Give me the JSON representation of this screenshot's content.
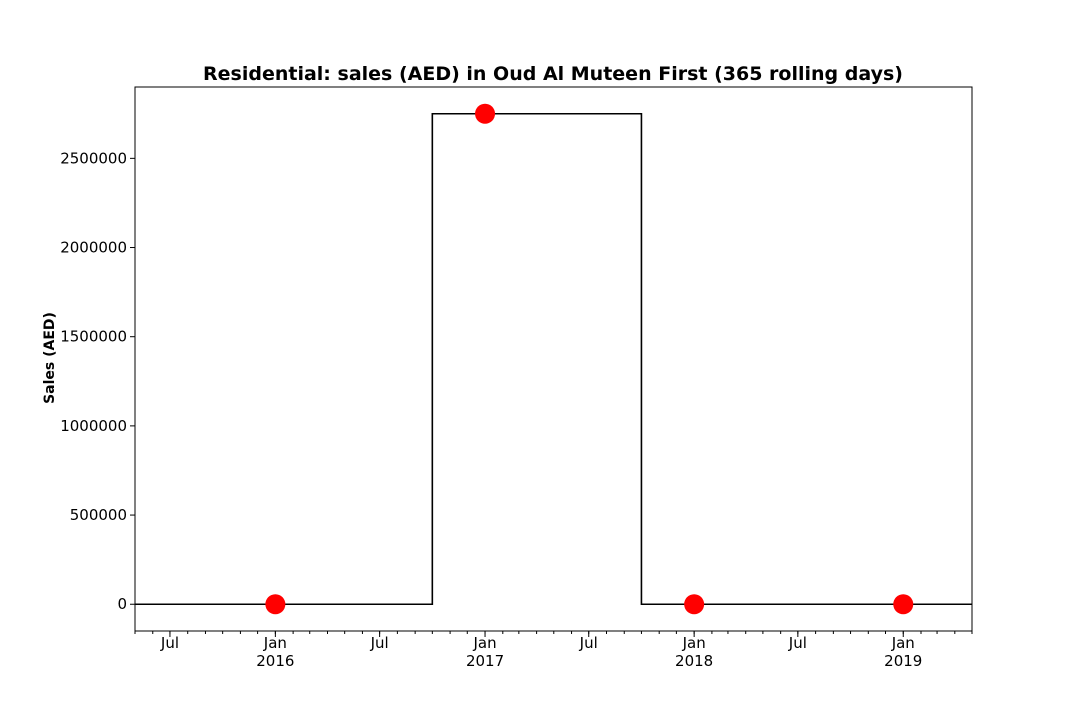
{
  "chart_data": {
    "type": "line",
    "title": "Residential: sales (AED) in Oud Al Muteen First (365 rolling days)",
    "xlabel": "",
    "ylabel": "Sales (AED)",
    "xlim": [
      "2015-05-01",
      "2019-05-01"
    ],
    "ylim": [
      -150000,
      2900000
    ],
    "grid": false,
    "legend": "none",
    "y_ticks": [
      0,
      500000,
      1000000,
      1500000,
      2000000,
      2500000
    ],
    "y_tick_labels": [
      "0",
      "500000",
      "1000000",
      "1500000",
      "2000000",
      "2500000"
    ],
    "x_ticks": [
      {
        "date": "2015-07-01",
        "label": "Jul",
        "year": ""
      },
      {
        "date": "2016-01-01",
        "label": "Jan",
        "year": "2016"
      },
      {
        "date": "2016-07-01",
        "label": "Jul",
        "year": ""
      },
      {
        "date": "2017-01-01",
        "label": "Jan",
        "year": "2017"
      },
      {
        "date": "2017-07-01",
        "label": "Jul",
        "year": ""
      },
      {
        "date": "2018-01-01",
        "label": "Jan",
        "year": "2018"
      },
      {
        "date": "2018-07-01",
        "label": "Jul",
        "year": ""
      },
      {
        "date": "2019-01-01",
        "label": "Jan",
        "year": "2019"
      }
    ],
    "series": [
      {
        "style": "step",
        "color": "#000000",
        "x": [
          "2015-05-01",
          "2016-10-01",
          "2016-10-01",
          "2017-10-01",
          "2017-10-01",
          "2019-05-01"
        ],
        "y": [
          0,
          0,
          2750000,
          2750000,
          0,
          0
        ]
      },
      {
        "style": "markers",
        "color": "#ff0000",
        "x": [
          "2016-01-01",
          "2017-01-01",
          "2018-01-01",
          "2019-01-01"
        ],
        "y": [
          0,
          2750000,
          0,
          0
        ]
      }
    ]
  }
}
